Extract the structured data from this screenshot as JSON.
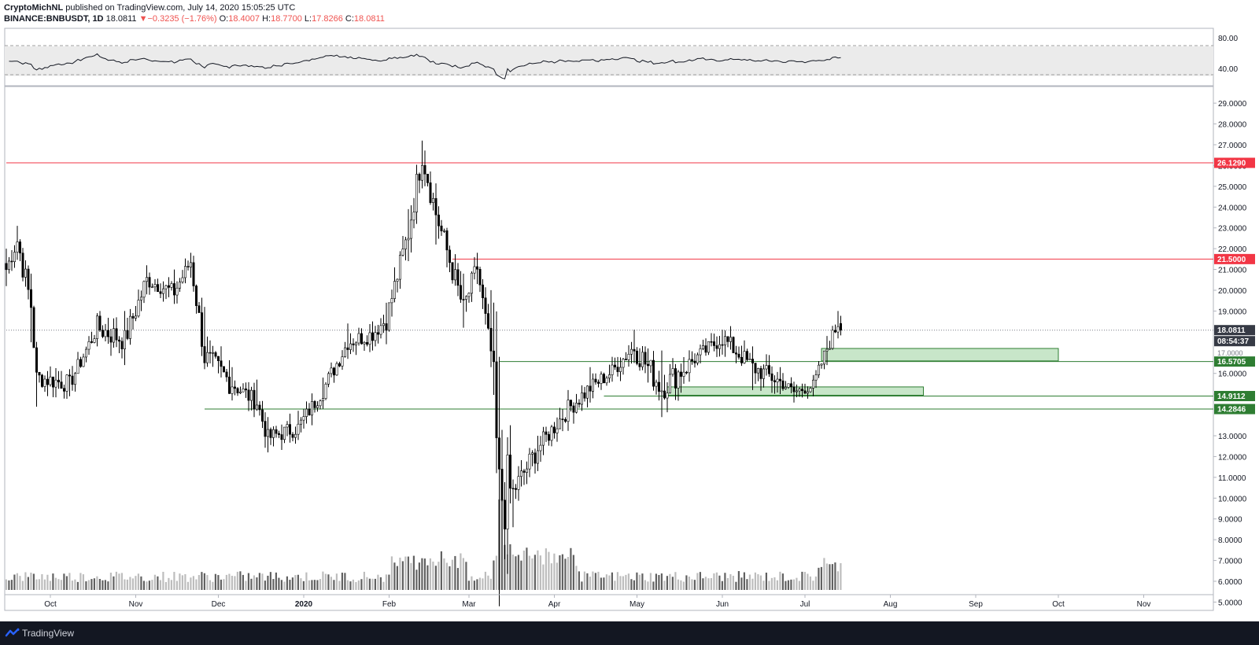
{
  "header": {
    "publisher": "CryptoMichNL",
    "published_text": "published on TradingView.com, July 14, 2020 15:05:25 UTC",
    "symbol": "BINANCE:BNBUSDT, 1D",
    "last": "18.0811",
    "change_arrow": "▼",
    "change": "−0.3235 (−1.76%)",
    "o_label": "O:",
    "o": "18.4007",
    "h_label": "H:",
    "h": "18.7700",
    "l_label": "L:",
    "l": "17.8266",
    "c_label": "C:",
    "c": "18.0811"
  },
  "rsi": {
    "levels": [
      "80.00",
      "40.00"
    ]
  },
  "price_axis": {
    "ticks": [
      "29.0000",
      "28.0000",
      "27.0000",
      "26.0000",
      "25.0000",
      "24.0000",
      "23.0000",
      "22.0000",
      "21.0000",
      "20.0000",
      "19.0000",
      "16.0000",
      "15.0000",
      "13.0000",
      "12.0000",
      "11.0000",
      "10.0000",
      "9.0000",
      "8.0000",
      "7.0000",
      "6.0000",
      "5.0000"
    ],
    "tick_values": [
      29,
      28,
      27,
      26,
      25,
      24,
      23,
      22,
      21,
      20,
      19,
      16,
      15,
      13,
      12,
      11,
      10,
      9,
      8,
      7,
      6,
      5
    ]
  },
  "time_axis": {
    "labels": [
      "Oct",
      "Nov",
      "Dec",
      "2020",
      "Feb",
      "Mar",
      "Apr",
      "May",
      "Jun",
      "Jul",
      "Aug",
      "Sep",
      "Oct",
      "Nov"
    ]
  },
  "price_labels": {
    "resistance_high": "26.1290",
    "resistance_mid": "21.5000",
    "last_price": "18.0811",
    "countdown": "08:54:37",
    "partial_hidden": "17.0000",
    "support_1": "16.5705",
    "support_2": "14.9112",
    "support_3": "14.2846"
  },
  "colors": {
    "up": "#ffffff",
    "down": "#000000",
    "resistance": "#f23645",
    "support": "#2e7d32",
    "zone_fill": "#c8e6c9",
    "last_label": "#363a45",
    "volume": "#9e9e9e"
  },
  "footer": {
    "brand": "TradingView",
    "logo_icon": "tradingview-logo-icon"
  },
  "chart_data": {
    "type": "candlestick",
    "symbol": "BNBUSDT",
    "interval": "1D",
    "ylim": [
      4.6,
      29.8
    ],
    "x_labels": [
      "Oct",
      "Nov",
      "Dec",
      "2020",
      "Feb",
      "Mar",
      "Apr",
      "May",
      "Jun",
      "Jul",
      "Aug",
      "Sep",
      "Oct",
      "Nov"
    ],
    "anchors": [
      {
        "date": "2019-09-15",
        "close": 21.0,
        "high": 22.0,
        "low": 20.2
      },
      {
        "date": "2019-09-19",
        "close": 22.4,
        "high": 23.1,
        "low": 21.8
      },
      {
        "date": "2019-09-24",
        "close": 19.3,
        "high": 20.8,
        "low": 17.5
      },
      {
        "date": "2019-09-26",
        "close": 15.8,
        "high": 16.4,
        "low": 14.4
      },
      {
        "date": "2019-10-08",
        "close": 15.5,
        "high": 16.2,
        "low": 14.9
      },
      {
        "date": "2019-10-18",
        "close": 18.2,
        "high": 18.9,
        "low": 17.3
      },
      {
        "date": "2019-10-28",
        "close": 17.6,
        "high": 19.0,
        "low": 16.4
      },
      {
        "date": "2019-11-05",
        "close": 20.5,
        "high": 21.2,
        "low": 19.8
      },
      {
        "date": "2019-11-15",
        "close": 19.9,
        "high": 21.0,
        "low": 19.5
      },
      {
        "date": "2019-11-21",
        "close": 21.4,
        "high": 21.8,
        "low": 20.6
      },
      {
        "date": "2019-11-26",
        "close": 16.8,
        "high": 19.2,
        "low": 16.2
      },
      {
        "date": "2019-12-06",
        "close": 15.5,
        "high": 16.3,
        "low": 14.7
      },
      {
        "date": "2019-12-15",
        "close": 14.6,
        "high": 15.7,
        "low": 14.2
      },
      {
        "date": "2019-12-19",
        "close": 12.9,
        "high": 13.9,
        "low": 12.2
      },
      {
        "date": "2019-12-30",
        "close": 13.4,
        "high": 14.2,
        "low": 12.9
      },
      {
        "date": "2020-01-08",
        "close": 15.2,
        "high": 15.8,
        "low": 14.3
      },
      {
        "date": "2020-01-17",
        "close": 17.5,
        "high": 18.4,
        "low": 16.8
      },
      {
        "date": "2020-01-26",
        "close": 17.9,
        "high": 18.5,
        "low": 17.1
      },
      {
        "date": "2020-01-31",
        "close": 18.6,
        "high": 19.4,
        "low": 18.0
      },
      {
        "date": "2020-02-08",
        "close": 22.8,
        "high": 23.9,
        "low": 21.4
      },
      {
        "date": "2020-02-13",
        "close": 26.6,
        "high": 27.2,
        "low": 24.9
      },
      {
        "date": "2020-02-18",
        "close": 23.7,
        "high": 24.9,
        "low": 22.2
      },
      {
        "date": "2020-02-22",
        "close": 21.9,
        "high": 23.0,
        "low": 21.1
      },
      {
        "date": "2020-02-28",
        "close": 19.1,
        "high": 20.8,
        "low": 18.2
      },
      {
        "date": "2020-03-04",
        "close": 21.1,
        "high": 21.8,
        "low": 20.3
      },
      {
        "date": "2020-03-09",
        "close": 16.9,
        "high": 18.6,
        "low": 16.3
      },
      {
        "date": "2020-03-12",
        "close": 10.1,
        "high": 16.8,
        "low": 4.8
      },
      {
        "date": "2020-03-17",
        "close": 10.3,
        "high": 10.9,
        "low": 8.6
      },
      {
        "date": "2020-03-26",
        "close": 12.4,
        "high": 13.0,
        "low": 11.3
      },
      {
        "date": "2020-04-06",
        "close": 14.3,
        "high": 15.2,
        "low": 13.6
      },
      {
        "date": "2020-04-14",
        "close": 15.3,
        "high": 16.3,
        "low": 14.6
      },
      {
        "date": "2020-04-22",
        "close": 16.1,
        "high": 16.8,
        "low": 15.6
      },
      {
        "date": "2020-04-30",
        "close": 17.3,
        "high": 18.1,
        "low": 16.5
      },
      {
        "date": "2020-05-10",
        "close": 15.3,
        "high": 17.1,
        "low": 13.9
      },
      {
        "date": "2020-05-20",
        "close": 16.5,
        "high": 17.1,
        "low": 15.6
      },
      {
        "date": "2020-06-01",
        "close": 17.7,
        "high": 18.1,
        "low": 16.9
      },
      {
        "date": "2020-06-12",
        "close": 16.3,
        "high": 17.3,
        "low": 15.2
      },
      {
        "date": "2020-06-22",
        "close": 15.6,
        "high": 16.3,
        "low": 15.0
      },
      {
        "date": "2020-06-27",
        "close": 15.1,
        "high": 15.6,
        "low": 14.6
      },
      {
        "date": "2020-07-04",
        "close": 15.4,
        "high": 15.9,
        "low": 14.9
      },
      {
        "date": "2020-07-09",
        "close": 17.2,
        "high": 17.8,
        "low": 16.4
      },
      {
        "date": "2020-07-13",
        "close": 18.4,
        "high": 19.0,
        "low": 17.8
      },
      {
        "date": "2020-07-14",
        "close": 18.08,
        "high": 18.77,
        "low": 17.83
      }
    ],
    "horizontal_lines": [
      {
        "name": "resistance",
        "value": 26.129,
        "from": "2019-09-15"
      },
      {
        "name": "resistance",
        "value": 21.5,
        "from": "2020-02-24"
      },
      {
        "name": "support",
        "value": 16.5705,
        "from": "2020-03-12"
      },
      {
        "name": "support",
        "value": 14.9112,
        "from": "2020-04-19"
      },
      {
        "name": "support",
        "value": 14.2846,
        "from": "2019-11-26"
      },
      {
        "name": "last-price",
        "value": 18.0811,
        "from": "2019-09-15"
      }
    ],
    "zones": [
      {
        "from": "2020-07-07",
        "to": "2020-10-01",
        "low": 16.6,
        "high": 17.2
      },
      {
        "from": "2020-05-12",
        "to": "2020-08-13",
        "low": 14.95,
        "high": 15.35
      }
    ],
    "rsi": {
      "levels": [
        70,
        30
      ],
      "range": [
        20,
        90
      ]
    }
  }
}
